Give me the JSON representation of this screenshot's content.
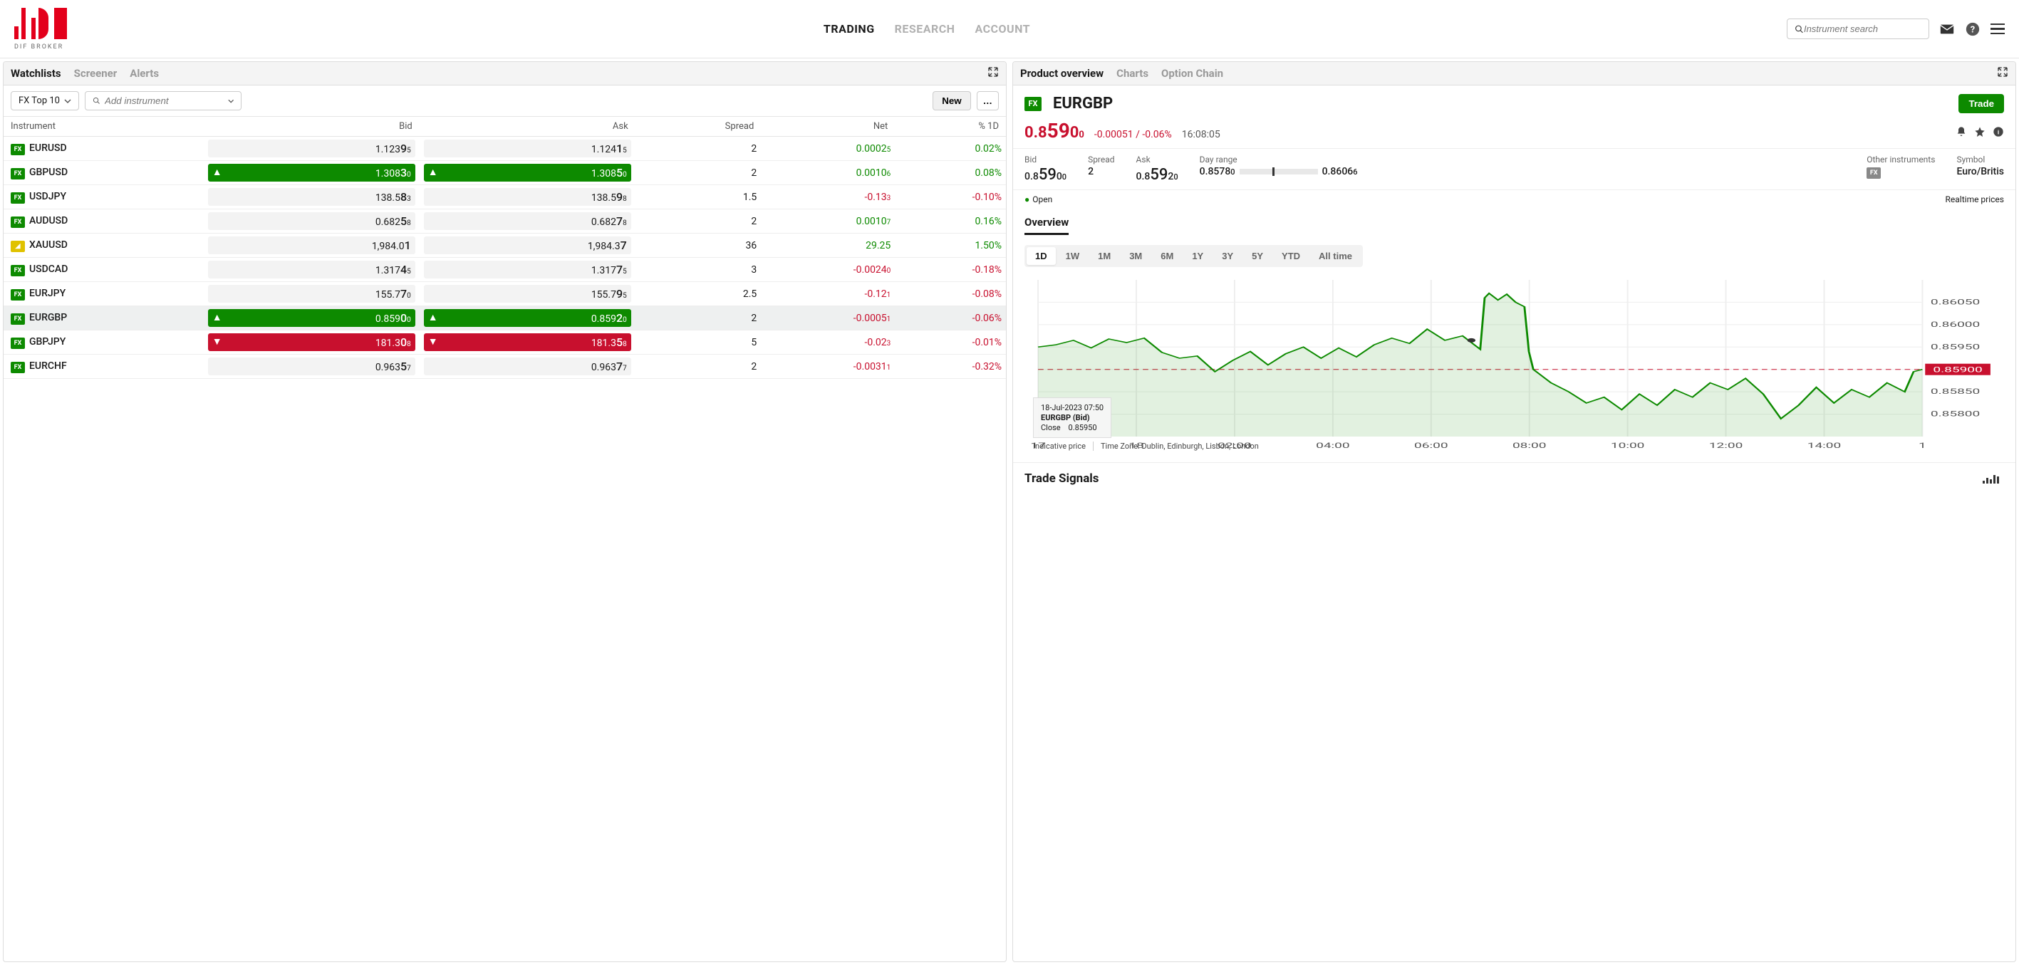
{
  "logo_text": "DIF BROKER",
  "nav": {
    "trading": "TRADING",
    "research": "RESEARCH",
    "account": "ACCOUNT"
  },
  "search_placeholder": "Instrument search",
  "left_panel": {
    "tabs": {
      "watchlists": "Watchlists",
      "screener": "Screener",
      "alerts": "Alerts"
    },
    "dropdown": "FX Top 10",
    "add_placeholder": "Add instrument",
    "new_btn": "New",
    "more_btn": "…",
    "columns": {
      "instrument": "Instrument",
      "bid": "Bid",
      "ask": "Ask",
      "spread": "Spread",
      "net": "Net",
      "pct": "% 1D"
    },
    "rows": [
      {
        "badge": "FX",
        "name": "EURUSD",
        "bid_main": "1.123",
        "bid_big": "9",
        "bid_sub": "5",
        "ask_main": "1.124",
        "ask_big": "1",
        "ask_sub": "5",
        "spread": "2",
        "net": "0.0002",
        "net_sub": "5",
        "net_pos": true,
        "pct": "0.02%",
        "pct_pos": true,
        "dir": "none"
      },
      {
        "badge": "FX",
        "name": "GBPUSD",
        "bid_main": "1.308",
        "bid_big": "3",
        "bid_sub": "0",
        "ask_main": "1.308",
        "ask_big": "5",
        "ask_sub": "0",
        "spread": "2",
        "net": "0.0010",
        "net_sub": "6",
        "net_pos": true,
        "pct": "0.08%",
        "pct_pos": true,
        "dir": "up"
      },
      {
        "badge": "FX",
        "name": "USDJPY",
        "bid_main": "138.5",
        "bid_big": "8",
        "bid_sub": "3",
        "ask_main": "138.5",
        "ask_big": "9",
        "ask_sub": "8",
        "spread": "1.5",
        "net": "-0.13",
        "net_sub": "3",
        "net_pos": false,
        "pct": "-0.10%",
        "pct_pos": false,
        "dir": "none"
      },
      {
        "badge": "FX",
        "name": "AUDUSD",
        "bid_main": "0.682",
        "bid_big": "5",
        "bid_sub": "8",
        "ask_main": "0.682",
        "ask_big": "7",
        "ask_sub": "8",
        "spread": "2",
        "net": "0.0010",
        "net_sub": "7",
        "net_pos": true,
        "pct": "0.16%",
        "pct_pos": true,
        "dir": "none"
      },
      {
        "badge": "XAU",
        "name": "XAUUSD",
        "bid_main": "1,984.0",
        "bid_big": "1",
        "bid_sub": "",
        "ask_main": "1,984.3",
        "ask_big": "7",
        "ask_sub": "",
        "spread": "36",
        "net": "29.25",
        "net_sub": "",
        "net_pos": true,
        "pct": "1.50%",
        "pct_pos": true,
        "dir": "none"
      },
      {
        "badge": "FX",
        "name": "USDCAD",
        "bid_main": "1.317",
        "bid_big": "4",
        "bid_sub": "5",
        "ask_main": "1.317",
        "ask_big": "7",
        "ask_sub": "5",
        "spread": "3",
        "net": "-0.0024",
        "net_sub": "0",
        "net_pos": false,
        "pct": "-0.18%",
        "pct_pos": false,
        "dir": "none"
      },
      {
        "badge": "FX",
        "name": "EURJPY",
        "bid_main": "155.7",
        "bid_big": "7",
        "bid_sub": "0",
        "ask_main": "155.7",
        "ask_big": "9",
        "ask_sub": "5",
        "spread": "2.5",
        "net": "-0.12",
        "net_sub": "1",
        "net_pos": false,
        "pct": "-0.08%",
        "pct_pos": false,
        "dir": "none"
      },
      {
        "badge": "FX",
        "name": "EURGBP",
        "bid_main": "0.859",
        "bid_big": "0",
        "bid_sub": "0",
        "ask_main": "0.859",
        "ask_big": "2",
        "ask_sub": "0",
        "spread": "2",
        "net": "-0.0005",
        "net_sub": "1",
        "net_pos": false,
        "pct": "-0.06%",
        "pct_pos": false,
        "dir": "up",
        "selected": true
      },
      {
        "badge": "FX",
        "name": "GBPJPY",
        "bid_main": "181.3",
        "bid_big": "0",
        "bid_sub": "8",
        "ask_main": "181.3",
        "ask_big": "5",
        "ask_sub": "8",
        "spread": "5",
        "net": "-0.02",
        "net_sub": "3",
        "net_pos": false,
        "pct": "-0.01%",
        "pct_pos": false,
        "dir": "down"
      },
      {
        "badge": "FX",
        "name": "EURCHF",
        "bid_main": "0.963",
        "bid_big": "5",
        "bid_sub": "7",
        "ask_main": "0.963",
        "ask_big": "7",
        "ask_sub": "7",
        "spread": "2",
        "net": "-0.0031",
        "net_sub": "1",
        "net_pos": false,
        "pct": "-0.32%",
        "pct_pos": false,
        "dir": "none"
      }
    ]
  },
  "right_panel": {
    "tabs": {
      "product": "Product overview",
      "charts": "Charts",
      "option": "Option Chain"
    },
    "symbol": "EURGBP",
    "price_main": "0.8",
    "price_big": "59",
    "price_sub": "0",
    "price_tiny": "0",
    "change": "-0.00051 / -0.06%",
    "time": "16:08:05",
    "trade_btn": "Trade",
    "stats": {
      "bid_label": "Bid",
      "bid_main": "0.8",
      "bid_big": "59",
      "bid_sub": "0",
      "bid_tiny": "0",
      "spread_label": "Spread",
      "spread_val": "2",
      "ask_label": "Ask",
      "ask_main": "0.8",
      "ask_big": "59",
      "ask_sub": "2",
      "ask_tiny": "0",
      "range_label": "Day range",
      "range_low": "0.8578",
      "range_low_sub": "0",
      "range_high": "0.8606",
      "range_high_sub": "6",
      "range_marker_pct": 42,
      "other_label": "Other instruments",
      "symbol_label": "Symbol",
      "symbol_val": "Euro/Britis"
    },
    "legend_open": "Open",
    "legend_prices": "Realtime prices",
    "overview_tab": "Overview",
    "ranges": [
      "1D",
      "1W",
      "1M",
      "3M",
      "6M",
      "1Y",
      "3Y",
      "5Y",
      "YTD",
      "All time"
    ],
    "chart": {
      "ymin": 0.8575,
      "ymax": 0.861,
      "ylabels": [
        "0.86050",
        "0.86000",
        "0.85950",
        "0.85900",
        "0.85850",
        "0.85800"
      ],
      "yvalues": [
        0.8605,
        0.86,
        0.8595,
        0.859,
        0.8585,
        0.858
      ],
      "xlabels": [
        "17",
        "18",
        "02:00",
        "04:00",
        "06:00",
        "08:00",
        "10:00",
        "12:00",
        "14:00",
        "1"
      ],
      "current_price": "0.85900",
      "line_color": "#0d8a00",
      "fill_color": "rgba(13,138,0,0.12)",
      "ref_color": "#c8102e",
      "tooltip": {
        "date": "18-Jul-2023 07:50",
        "pair": "EURGBP (Bid)",
        "close_label": "Close",
        "close_val": "0.85950"
      },
      "indicative": "Indicative price",
      "timezone": "Time Zone: Dublin, Edinburgh, Lisbon, London",
      "data": [
        [
          0,
          0.8595
        ],
        [
          0.02,
          0.85955
        ],
        [
          0.04,
          0.85965
        ],
        [
          0.06,
          0.85948
        ],
        [
          0.08,
          0.85968
        ],
        [
          0.1,
          0.8596
        ],
        [
          0.12,
          0.8597
        ],
        [
          0.14,
          0.85938
        ],
        [
          0.16,
          0.85925
        ],
        [
          0.18,
          0.8593
        ],
        [
          0.2,
          0.85895
        ],
        [
          0.22,
          0.8592
        ],
        [
          0.24,
          0.8594
        ],
        [
          0.26,
          0.8591
        ],
        [
          0.28,
          0.85935
        ],
        [
          0.3,
          0.8595
        ],
        [
          0.32,
          0.85925
        ],
        [
          0.34,
          0.85948
        ],
        [
          0.36,
          0.85928
        ],
        [
          0.38,
          0.85955
        ],
        [
          0.4,
          0.8597
        ],
        [
          0.42,
          0.85958
        ],
        [
          0.44,
          0.8599
        ],
        [
          0.46,
          0.85965
        ],
        [
          0.48,
          0.85975
        ],
        [
          0.5,
          0.85945
        ],
        [
          0.505,
          0.8606
        ],
        [
          0.51,
          0.8607
        ],
        [
          0.52,
          0.86055
        ],
        [
          0.53,
          0.86068
        ],
        [
          0.54,
          0.8605
        ],
        [
          0.55,
          0.8604
        ],
        [
          0.555,
          0.8594
        ],
        [
          0.56,
          0.859
        ],
        [
          0.58,
          0.8587
        ],
        [
          0.6,
          0.8585
        ],
        [
          0.62,
          0.85825
        ],
        [
          0.64,
          0.85838
        ],
        [
          0.66,
          0.8581
        ],
        [
          0.68,
          0.85845
        ],
        [
          0.7,
          0.8582
        ],
        [
          0.72,
          0.85855
        ],
        [
          0.74,
          0.85838
        ],
        [
          0.76,
          0.8587
        ],
        [
          0.78,
          0.85855
        ],
        [
          0.8,
          0.8588
        ],
        [
          0.82,
          0.85845
        ],
        [
          0.84,
          0.8579
        ],
        [
          0.86,
          0.8582
        ],
        [
          0.88,
          0.8586
        ],
        [
          0.9,
          0.85825
        ],
        [
          0.92,
          0.85855
        ],
        [
          0.94,
          0.85838
        ],
        [
          0.96,
          0.8587
        ],
        [
          0.98,
          0.8585
        ],
        [
          0.99,
          0.85895
        ],
        [
          1.0,
          0.859
        ]
      ]
    },
    "trade_signals": "Trade Signals"
  },
  "colors": {
    "brand_red": "#e3001b",
    "green": "#0d8a00",
    "red": "#c8102e",
    "grey_bg": "#f4f4f4"
  }
}
